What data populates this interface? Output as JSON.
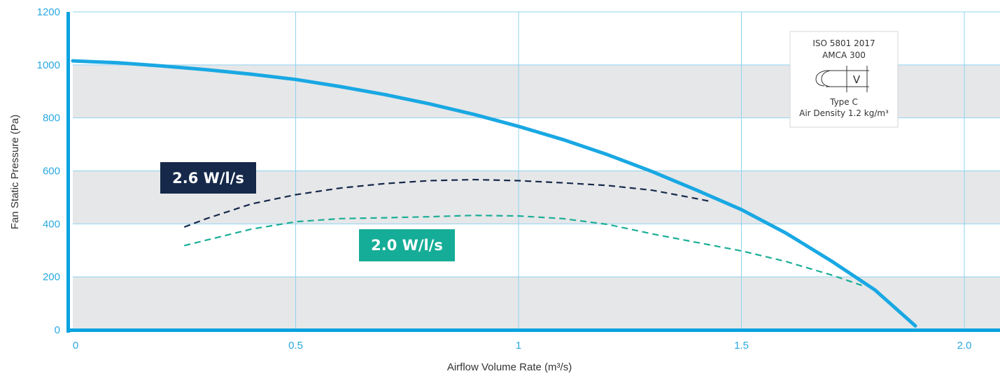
{
  "chart_data": {
    "type": "line",
    "xlabel": "Airflow Volume Rate (m³/s)",
    "ylabel": "Fan Static Pressure (Pa)",
    "xlim": [
      0,
      2.08
    ],
    "ylim": [
      0,
      1200
    ],
    "x_ticks": [
      "0",
      "0.5",
      "1",
      "1.5",
      "2.0"
    ],
    "x_tick_values": [
      0,
      0.5,
      1,
      1.5,
      2.0
    ],
    "y_ticks": [
      "0",
      "200",
      "400",
      "600",
      "800",
      "1000",
      "1200"
    ],
    "y_tick_values": [
      0,
      200,
      400,
      600,
      800,
      1000,
      1200
    ],
    "grid": true,
    "band_color": "#e6e7e9",
    "grid_color": "#8fd3ef",
    "axis_color": "#0aa3e0",
    "series": [
      {
        "style": "solid",
        "color": "#19a8e3",
        "x": [
          0,
          0.1,
          0.2,
          0.3,
          0.4,
          0.5,
          0.6,
          0.7,
          0.8,
          0.9,
          1.0,
          1.1,
          1.2,
          1.3,
          1.4,
          1.5,
          1.6,
          1.7,
          1.8,
          1.89
        ],
        "y": [
          1015,
          1008,
          996,
          982,
          965,
          945,
          918,
          888,
          853,
          813,
          768,
          718,
          661,
          597,
          527,
          454,
          365,
          262,
          150,
          15
        ]
      },
      {
        "name": "2.6 W/l/s",
        "style": "dashed",
        "color": "#16294a",
        "x": [
          0.25,
          0.3,
          0.4,
          0.5,
          0.6,
          0.7,
          0.8,
          0.9,
          1.0,
          1.1,
          1.2,
          1.3,
          1.4,
          1.43
        ],
        "y": [
          388,
          420,
          475,
          510,
          535,
          552,
          563,
          567,
          563,
          555,
          545,
          527,
          495,
          485
        ]
      },
      {
        "name": "2.0 W/l/s",
        "style": "dashed",
        "color": "#1aae96",
        "x": [
          0.25,
          0.4,
          0.5,
          0.6,
          0.7,
          0.8,
          0.9,
          1.0,
          1.1,
          1.2,
          1.3,
          1.4,
          1.5,
          1.6,
          1.7,
          1.77
        ],
        "y": [
          318,
          380,
          408,
          420,
          423,
          427,
          432,
          430,
          420,
          398,
          362,
          330,
          298,
          258,
          208,
          168
        ]
      }
    ],
    "labels": [
      {
        "text": "2.6 W/l/s",
        "color": "#16294a",
        "near_series": 1
      },
      {
        "text": "2.0 W/l/s",
        "color": "#15ad97",
        "near_series": 2
      }
    ]
  },
  "standard_box": {
    "line1": "ISO 5801 2017",
    "line2": "AMCA 300",
    "symbol_letter": "V",
    "line3": "Type C",
    "line4": "Air Density 1.2 kg/m³"
  }
}
